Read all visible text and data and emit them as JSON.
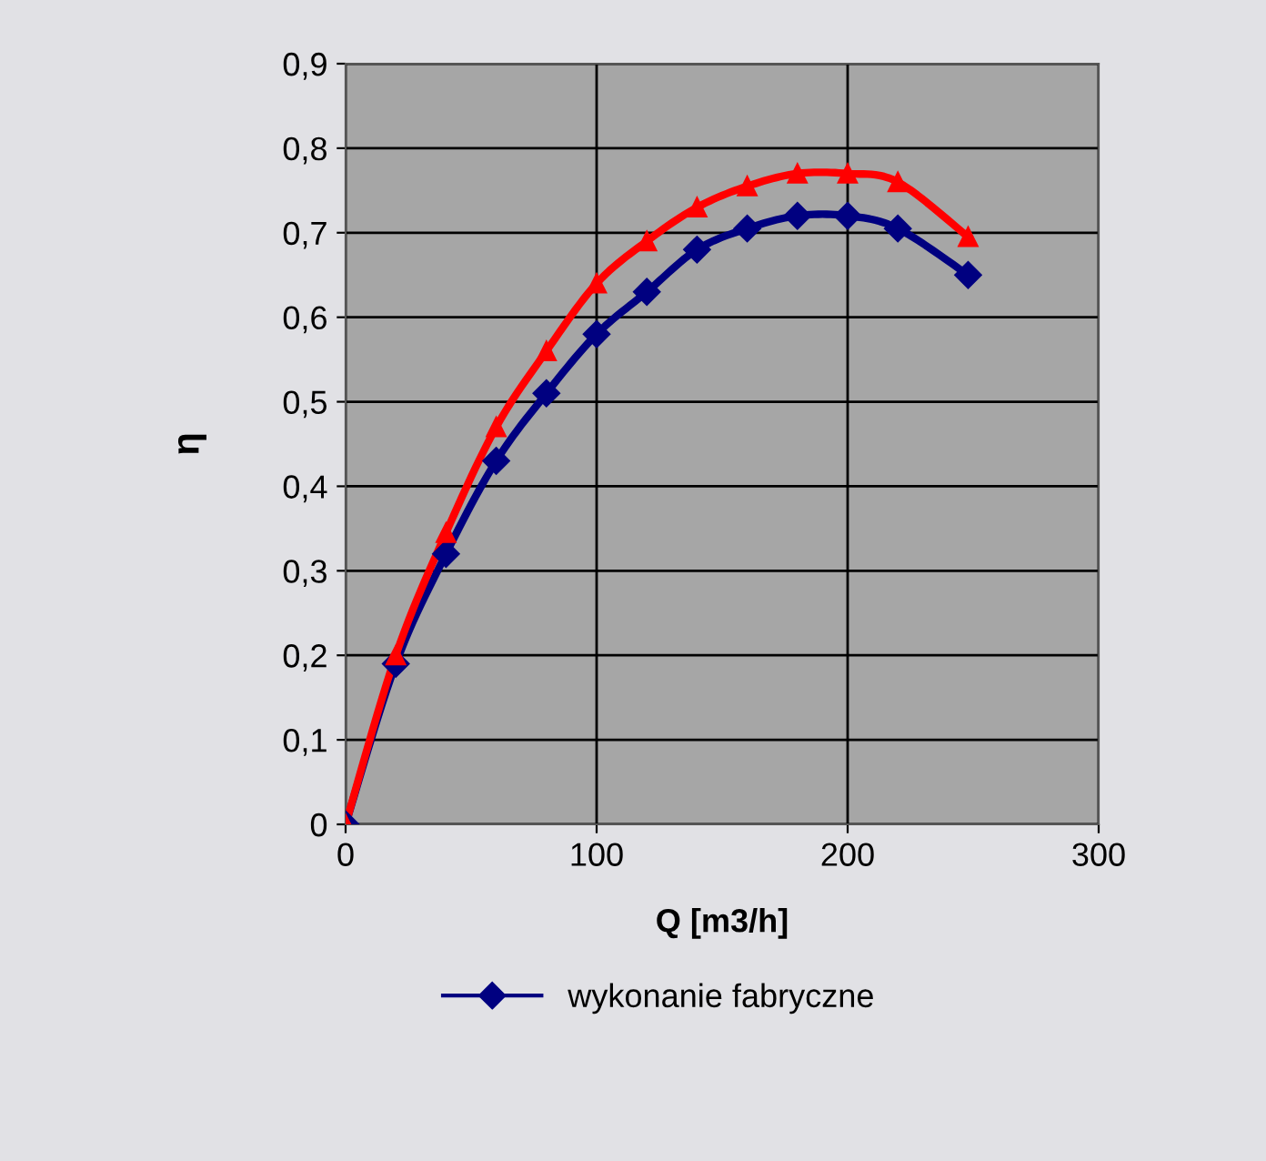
{
  "chart_data": {
    "type": "line",
    "xlabel": "Q [m3/h]",
    "ylabel": "η",
    "x": [
      0,
      20,
      40,
      60,
      80,
      100,
      120,
      140,
      160,
      180,
      200,
      220,
      248
    ],
    "series": [
      {
        "name": "wykonanie fabryczne",
        "color": "#000080",
        "marker": "diamond",
        "values": [
          0,
          0.19,
          0.32,
          0.43,
          0.51,
          0.58,
          0.63,
          0.68,
          0.705,
          0.72,
          0.72,
          0.705,
          0.65
        ]
      },
      {
        "color": "#ff0000",
        "marker": "triangle",
        "values": [
          0,
          0.2,
          0.345,
          0.47,
          0.56,
          0.64,
          0.69,
          0.73,
          0.755,
          0.77,
          0.77,
          0.76,
          0.695
        ]
      }
    ],
    "xlim": [
      0,
      300
    ],
    "xticks": [
      0,
      100,
      200,
      300
    ],
    "ylim": [
      0,
      0.9
    ],
    "yticks": [
      {
        "value": 0,
        "label": "0"
      },
      {
        "value": 0.1,
        "label": "0,1"
      },
      {
        "value": 0.2,
        "label": "0,2"
      },
      {
        "value": 0.3,
        "label": "0,3"
      },
      {
        "value": 0.4,
        "label": "0,4"
      },
      {
        "value": 0.5,
        "label": "0,5"
      },
      {
        "value": 0.6,
        "label": "0,6"
      },
      {
        "value": 0.7,
        "label": "0,7"
      },
      {
        "value": 0.8,
        "label": "0,8"
      },
      {
        "value": 0.9,
        "label": "0,9"
      }
    ],
    "grid": true,
    "legend": "bottom",
    "line_style": "solid"
  }
}
